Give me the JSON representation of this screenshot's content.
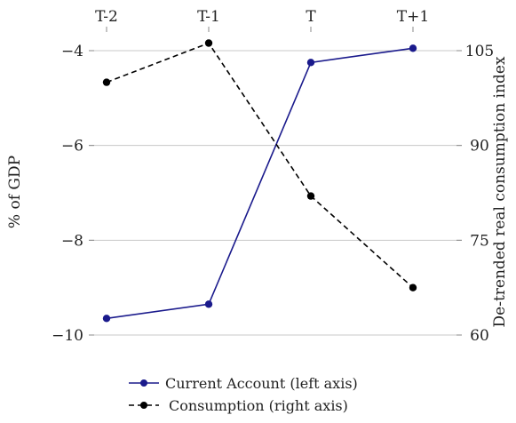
{
  "chart_data": {
    "type": "line",
    "categories": [
      "T-2",
      "T-1",
      "T",
      "T+1"
    ],
    "ylabel_left": "% of GDP",
    "ylabel_right": "De-trended real consumption index",
    "ylim_left": [
      -10,
      -3.5
    ],
    "ylim_right": [
      60,
      107.5
    ],
    "yticks_left": [
      -4,
      -6,
      -8,
      -10
    ],
    "yticks_right": [
      105,
      90,
      75,
      60
    ],
    "grid": true,
    "legend_position": "bottom",
    "series": [
      {
        "name": "Current Account (left axis)",
        "axis": "left",
        "color": "#1a1a8c",
        "style": "solid",
        "values": [
          -9.65,
          -9.35,
          -4.25,
          -3.95
        ]
      },
      {
        "name": "Consumption (right axis)",
        "axis": "right",
        "color": "#000000",
        "style": "dashed",
        "values": [
          100.0,
          106.2,
          82.0,
          67.5
        ]
      }
    ]
  }
}
